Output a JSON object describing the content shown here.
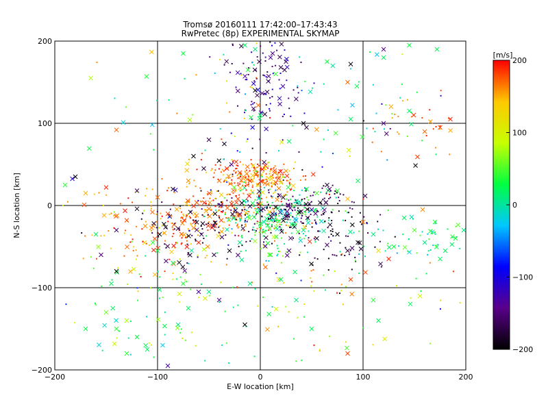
{
  "chart_data": {
    "type": "scatter",
    "title": "Tromsø 20160111 17:42:00–17:43:43",
    "subtitle": "RwPretec (8p) EXPERIMENTAL SKYMAP",
    "xlabel": "E-W location [km]",
    "ylabel": "N-S location [km]",
    "xlim": [
      -200,
      200
    ],
    "ylim": [
      -200,
      200
    ],
    "xticks": [
      -200,
      -100,
      0,
      100,
      200
    ],
    "yticks": [
      -200,
      -100,
      0,
      100,
      200
    ],
    "xtick_labels": [
      "−200",
      "−100",
      "0",
      "100",
      "200"
    ],
    "ytick_labels": [
      "−200",
      "−100",
      "0",
      "100",
      "200"
    ],
    "grid": true,
    "markers": [
      "dot",
      "x"
    ],
    "colorbar": {
      "label": "[m/s]",
      "min": -200,
      "max": 200,
      "ticks": [
        200,
        100,
        0,
        -100,
        -200
      ],
      "tick_labels": [
        "200",
        "100",
        "0",
        "−100",
        "−200"
      ],
      "colormap": [
        "#000000",
        "#5a008a",
        "#0000ff",
        "#00c8ff",
        "#00ff40",
        "#c8ff00",
        "#ffc800",
        "#ff0000"
      ]
    },
    "points": [
      {
        "x": -32,
        "y": -3,
        "v": 170,
        "m": "x"
      },
      {
        "x": -28,
        "y": 2,
        "v": 190,
        "m": "x"
      },
      {
        "x": -24,
        "y": -6,
        "v": -180,
        "m": "x"
      },
      {
        "x": -20,
        "y": -12,
        "v": 180,
        "m": "x"
      },
      {
        "x": -18,
        "y": 3,
        "v": -190,
        "m": "x"
      },
      {
        "x": -14,
        "y": -9,
        "v": 150,
        "m": "x"
      },
      {
        "x": -10,
        "y": -1,
        "v": -170,
        "m": "x"
      },
      {
        "x": -6,
        "y": -14,
        "v": 20,
        "m": "x"
      },
      {
        "x": -3,
        "y": -8,
        "v": 30,
        "m": "x"
      },
      {
        "x": 0,
        "y": -22,
        "v": 40,
        "m": "x"
      },
      {
        "x": 3,
        "y": -4,
        "v": -160,
        "m": "x"
      },
      {
        "x": 6,
        "y": -16,
        "v": 10,
        "m": "x"
      },
      {
        "x": 9,
        "y": -28,
        "v": 50,
        "m": "x"
      },
      {
        "x": 12,
        "y": -10,
        "v": -140,
        "m": "x"
      },
      {
        "x": 15,
        "y": -2,
        "v": -190,
        "m": "x"
      },
      {
        "x": 18,
        "y": -19,
        "v": 60,
        "m": "x"
      },
      {
        "x": 21,
        "y": -7,
        "v": -20,
        "m": "x"
      },
      {
        "x": 25,
        "y": -13,
        "v": -180,
        "m": "x"
      },
      {
        "x": 29,
        "y": -3,
        "v": -150,
        "m": "x"
      },
      {
        "x": 33,
        "y": -23,
        "v": 20,
        "m": "x"
      },
      {
        "x": 38,
        "y": -8,
        "v": -200,
        "m": "x"
      },
      {
        "x": 42,
        "y": -30,
        "v": 10,
        "m": "x"
      },
      {
        "x": 46,
        "y": -15,
        "v": -170,
        "m": "x"
      },
      {
        "x": 50,
        "y": -5,
        "v": -130,
        "m": "x"
      },
      {
        "x": -38,
        "y": -18,
        "v": 180,
        "m": "x"
      },
      {
        "x": -44,
        "y": -10,
        "v": -200,
        "m": "x"
      },
      {
        "x": -50,
        "y": -4,
        "v": 170,
        "m": "x"
      },
      {
        "x": -56,
        "y": -22,
        "v": -190,
        "m": "x"
      },
      {
        "x": -62,
        "y": -12,
        "v": 160,
        "m": "x"
      },
      {
        "x": -68,
        "y": -8,
        "v": -180,
        "m": "x"
      },
      {
        "x": -74,
        "y": -18,
        "v": 190,
        "m": "x"
      },
      {
        "x": -80,
        "y": -28,
        "v": -170,
        "m": "x"
      },
      {
        "x": -90,
        "y": -10,
        "v": 180,
        "m": "x"
      },
      {
        "x": -98,
        "y": -35,
        "v": -200,
        "m": "x"
      },
      {
        "x": -105,
        "y": -8,
        "v": 170,
        "m": "x"
      },
      {
        "x": -112,
        "y": -25,
        "v": 160,
        "m": "x"
      },
      {
        "x": -120,
        "y": -4,
        "v": -190,
        "m": "x"
      },
      {
        "x": -130,
        "y": -18,
        "v": 180,
        "m": "x"
      },
      {
        "x": -140,
        "y": -30,
        "v": -160,
        "m": "x"
      },
      {
        "x": -152,
        "y": -12,
        "v": 150,
        "m": "x"
      },
      {
        "x": -10,
        "y": 30,
        "v": 190,
        "m": "x"
      },
      {
        "x": -4,
        "y": 38,
        "v": 180,
        "m": "x"
      },
      {
        "x": 2,
        "y": 44,
        "v": 200,
        "m": "x"
      },
      {
        "x": 8,
        "y": 33,
        "v": 120,
        "m": "x"
      },
      {
        "x": 14,
        "y": 40,
        "v": 170,
        "m": "x"
      },
      {
        "x": 20,
        "y": 28,
        "v": 110,
        "m": "x"
      },
      {
        "x": 26,
        "y": 36,
        "v": 190,
        "m": "x"
      },
      {
        "x": 32,
        "y": 24,
        "v": 140,
        "m": "x"
      },
      {
        "x": -20,
        "y": 40,
        "v": 180,
        "m": "x"
      },
      {
        "x": -28,
        "y": 50,
        "v": -150,
        "m": "x"
      },
      {
        "x": -40,
        "y": 30,
        "v": 170,
        "m": "x"
      },
      {
        "x": -55,
        "y": 45,
        "v": -180,
        "m": "x"
      },
      {
        "x": -65,
        "y": 60,
        "v": -200,
        "m": "x"
      },
      {
        "x": -35,
        "y": 75,
        "v": -190,
        "m": "x"
      },
      {
        "x": -50,
        "y": 80,
        "v": -170,
        "m": "x"
      },
      {
        "x": -70,
        "y": 30,
        "v": 160,
        "m": "x"
      },
      {
        "x": -85,
        "y": 20,
        "v": -180,
        "m": "x"
      },
      {
        "x": -100,
        "y": 10,
        "v": 170,
        "m": "x"
      },
      {
        "x": -120,
        "y": 18,
        "v": -160,
        "m": "x"
      },
      {
        "x": -150,
        "y": 22,
        "v": 190,
        "m": "x"
      },
      {
        "x": -180,
        "y": 35,
        "v": -200,
        "m": "x"
      },
      {
        "x": -190,
        "y": 25,
        "v": 40,
        "m": "x"
      },
      {
        "x": -170,
        "y": 15,
        "v": 150,
        "m": "x"
      },
      {
        "x": 45,
        "y": 20,
        "v": 30,
        "m": "x"
      },
      {
        "x": 55,
        "y": 15,
        "v": 50,
        "m": "x"
      },
      {
        "x": 65,
        "y": 25,
        "v": -180,
        "m": "x"
      },
      {
        "x": 75,
        "y": 18,
        "v": 40,
        "m": "x"
      },
      {
        "x": 85,
        "y": 8,
        "v": 150,
        "m": "x"
      },
      {
        "x": 95,
        "y": 30,
        "v": 20,
        "m": "x"
      },
      {
        "x": 55,
        "y": -40,
        "v": -180,
        "m": "x"
      },
      {
        "x": 65,
        "y": -48,
        "v": -160,
        "m": "x"
      },
      {
        "x": 75,
        "y": -35,
        "v": -200,
        "m": "x"
      },
      {
        "x": 85,
        "y": -55,
        "v": -170,
        "m": "x"
      },
      {
        "x": 95,
        "y": -45,
        "v": -190,
        "m": "x"
      },
      {
        "x": 88,
        "y": -90,
        "v": 180,
        "m": "x"
      },
      {
        "x": 100,
        "y": -20,
        "v": 170,
        "m": "x"
      },
      {
        "x": 110,
        "y": -35,
        "v": 10,
        "m": "x"
      },
      {
        "x": 130,
        "y": -50,
        "v": 30,
        "m": "x"
      },
      {
        "x": 140,
        "y": -15,
        "v": 20,
        "m": "x"
      },
      {
        "x": 150,
        "y": -30,
        "v": 50,
        "m": "x"
      },
      {
        "x": 160,
        "y": -45,
        "v": 10,
        "m": "x"
      },
      {
        "x": 170,
        "y": -20,
        "v": 40,
        "m": "x"
      },
      {
        "x": 180,
        "y": -55,
        "v": 20,
        "m": "x"
      },
      {
        "x": 190,
        "y": -40,
        "v": 30,
        "m": "x"
      },
      {
        "x": 198,
        "y": -30,
        "v": 10,
        "m": "x"
      },
      {
        "x": 175,
        "y": -65,
        "v": 20,
        "m": "x"
      },
      {
        "x": 125,
        "y": -65,
        "v": 190,
        "m": "x"
      },
      {
        "x": 115,
        "y": -55,
        "v": 120,
        "m": "x"
      },
      {
        "x": 158,
        "y": -5,
        "v": 160,
        "m": "x"
      },
      {
        "x": 175,
        "y": 95,
        "v": 180,
        "m": "x"
      },
      {
        "x": 185,
        "y": 105,
        "v": 190,
        "m": "x"
      },
      {
        "x": 160,
        "y": 90,
        "v": 170,
        "m": "x"
      },
      {
        "x": 145,
        "y": 115,
        "v": 20,
        "m": "x"
      },
      {
        "x": 120,
        "y": 100,
        "v": -140,
        "m": "x"
      },
      {
        "x": 88,
        "y": 105,
        "v": 20,
        "m": "x"
      },
      {
        "x": 85,
        "y": 150,
        "v": 170,
        "m": "x"
      },
      {
        "x": 88,
        "y": 172,
        "v": -190,
        "m": "x"
      },
      {
        "x": 120,
        "y": 180,
        "v": 20,
        "m": "x"
      },
      {
        "x": 145,
        "y": 195,
        "v": 30,
        "m": "x"
      },
      {
        "x": 172,
        "y": 190,
        "v": 20,
        "m": "x"
      },
      {
        "x": 120,
        "y": 190,
        "v": -140,
        "m": "x"
      },
      {
        "x": 42,
        "y": 100,
        "v": -190,
        "m": "x"
      },
      {
        "x": 45,
        "y": 95,
        "v": -170,
        "m": "x"
      },
      {
        "x": 28,
        "y": 78,
        "v": 20,
        "m": "x"
      },
      {
        "x": 22,
        "y": 145,
        "v": -130,
        "m": "x"
      },
      {
        "x": 20,
        "y": 168,
        "v": -170,
        "m": "x"
      },
      {
        "x": 25,
        "y": 175,
        "v": -160,
        "m": "x"
      },
      {
        "x": 10,
        "y": 180,
        "v": -140,
        "m": "x"
      },
      {
        "x": 15,
        "y": 160,
        "v": 40,
        "m": "x"
      },
      {
        "x": 12,
        "y": 185,
        "v": -150,
        "m": "x"
      },
      {
        "x": -5,
        "y": 190,
        "v": 10,
        "m": "x"
      },
      {
        "x": -15,
        "y": 195,
        "v": 20,
        "m": "x"
      },
      {
        "x": -5,
        "y": 140,
        "v": -190,
        "m": "x"
      },
      {
        "x": -2,
        "y": 122,
        "v": 170,
        "m": "x"
      },
      {
        "x": -75,
        "y": 185,
        "v": 30,
        "m": "x"
      },
      {
        "x": -140,
        "y": 92,
        "v": 170,
        "m": "x"
      },
      {
        "x": -160,
        "y": -35,
        "v": 20,
        "m": "x"
      },
      {
        "x": -155,
        "y": -60,
        "v": -150,
        "m": "x"
      },
      {
        "x": -145,
        "y": -95,
        "v": 20,
        "m": "x"
      },
      {
        "x": -140,
        "y": -80,
        "v": -200,
        "m": "x"
      },
      {
        "x": -150,
        "y": -130,
        "v": 60,
        "m": "x"
      },
      {
        "x": -140,
        "y": -150,
        "v": 40,
        "m": "x"
      },
      {
        "x": -130,
        "y": -140,
        "v": 80,
        "m": "x"
      },
      {
        "x": -120,
        "y": -160,
        "v": 30,
        "m": "x"
      },
      {
        "x": -110,
        "y": -175,
        "v": 20,
        "m": "x"
      },
      {
        "x": -130,
        "y": -180,
        "v": 40,
        "m": "x"
      },
      {
        "x": -95,
        "y": -170,
        "v": -20,
        "m": "x"
      },
      {
        "x": -90,
        "y": -195,
        "v": -130,
        "m": "x"
      },
      {
        "x": -80,
        "y": -145,
        "v": 10,
        "m": "x"
      },
      {
        "x": -70,
        "y": -125,
        "v": 20,
        "m": "x"
      },
      {
        "x": -60,
        "y": -105,
        "v": -130,
        "m": "x"
      },
      {
        "x": -75,
        "y": -95,
        "v": 40,
        "m": "x"
      },
      {
        "x": -50,
        "y": -105,
        "v": 10,
        "m": "x"
      },
      {
        "x": -40,
        "y": -115,
        "v": -140,
        "m": "x"
      },
      {
        "x": -15,
        "y": -145,
        "v": -200,
        "m": "x"
      },
      {
        "x": -10,
        "y": -95,
        "v": 10,
        "m": "x"
      },
      {
        "x": 5,
        "y": -75,
        "v": 170,
        "m": "x"
      },
      {
        "x": 20,
        "y": -90,
        "v": 20,
        "m": "x"
      },
      {
        "x": 35,
        "y": -115,
        "v": 10,
        "m": "x"
      },
      {
        "x": 50,
        "y": -150,
        "v": 20,
        "m": "x"
      },
      {
        "x": 85,
        "y": -180,
        "v": 180,
        "m": "x"
      },
      {
        "x": 115,
        "y": -140,
        "v": 20,
        "m": "x"
      },
      {
        "x": 110,
        "y": -115,
        "v": 40,
        "m": "x"
      },
      {
        "x": -100,
        "y": -55,
        "v": 30,
        "m": "x"
      },
      {
        "x": -85,
        "y": -70,
        "v": 20,
        "m": "x"
      },
      {
        "x": -60,
        "y": -45,
        "v": 190,
        "m": "x"
      },
      {
        "x": -45,
        "y": -60,
        "v": -170,
        "m": "x"
      },
      {
        "x": -30,
        "y": -55,
        "v": -190,
        "m": "x"
      },
      {
        "x": -20,
        "y": -45,
        "v": 10,
        "m": "x"
      },
      {
        "x": 10,
        "y": -60,
        "v": 40,
        "m": "x"
      },
      {
        "x": 28,
        "y": -55,
        "v": -160,
        "m": "x"
      },
      {
        "x": -170,
        "y": -150,
        "v": 30,
        "m": "x"
      },
      {
        "x": -165,
        "y": 155,
        "v": 80,
        "m": "x"
      },
      {
        "x": -12,
        "y": 165,
        "v": 40,
        "m": "x"
      },
      {
        "x": -1,
        "y": 175,
        "v": -170,
        "m": "x"
      },
      {
        "x": 0,
        "y": 110,
        "v": 20,
        "m": "x"
      },
      {
        "x": 65,
        "y": 175,
        "v": 30,
        "m": "x"
      }
    ],
    "point_clouds": [
      {
        "cx": -35,
        "cy": -5,
        "sx": 30,
        "sy": 18,
        "n": 180,
        "vmin": 140,
        "vmax": 200
      },
      {
        "cx": 15,
        "cy": -12,
        "sx": 28,
        "sy": 18,
        "n": 200,
        "vmin": -20,
        "vmax": 60
      },
      {
        "cx": 25,
        "cy": -5,
        "sx": 35,
        "sy": 15,
        "n": 140,
        "vmin": -200,
        "vmax": -140
      },
      {
        "cx": 5,
        "cy": 35,
        "sx": 22,
        "sy": 10,
        "n": 130,
        "vmin": 110,
        "vmax": 200
      },
      {
        "cx": -20,
        "cy": 40,
        "sx": 18,
        "sy": 10,
        "n": 60,
        "vmin": 160,
        "vmax": 200
      },
      {
        "cx": 5,
        "cy": 150,
        "sx": 18,
        "sy": 35,
        "n": 110,
        "vmin": -180,
        "vmax": -90
      },
      {
        "cx": -110,
        "cy": -30,
        "sx": 45,
        "sy": 25,
        "n": 110,
        "vmin": 130,
        "vmax": 200
      },
      {
        "cx": -60,
        "cy": -30,
        "sx": 30,
        "sy": 20,
        "n": 80,
        "vmin": -200,
        "vmax": -150
      },
      {
        "cx": 75,
        "cy": -30,
        "sx": 25,
        "sy": 25,
        "n": 70,
        "vmin": -200,
        "vmax": -150
      },
      {
        "cx": -100,
        "cy": -120,
        "sx": 45,
        "sy": 45,
        "n": 80,
        "vmin": -20,
        "vmax": 100
      },
      {
        "cx": 50,
        "cy": -110,
        "sx": 60,
        "sy": 45,
        "n": 70,
        "vmin": 0,
        "vmax": 200
      },
      {
        "cx": 160,
        "cy": -40,
        "sx": 25,
        "sy": 15,
        "n": 45,
        "vmin": -30,
        "vmax": 60
      },
      {
        "cx": 160,
        "cy": 100,
        "sx": 25,
        "sy": 25,
        "n": 30,
        "vmin": 150,
        "vmax": 200
      },
      {
        "cx": -60,
        "cy": 130,
        "sx": 60,
        "sy": 45,
        "n": 40,
        "vmin": -40,
        "vmax": 200
      },
      {
        "cx": 80,
        "cy": 130,
        "sx": 60,
        "sy": 45,
        "n": 40,
        "vmin": -40,
        "vmax": 60
      },
      {
        "cx": 0,
        "cy": 0,
        "sx": 90,
        "sy": 70,
        "n": 120,
        "vmin": -200,
        "vmax": 200
      }
    ]
  }
}
